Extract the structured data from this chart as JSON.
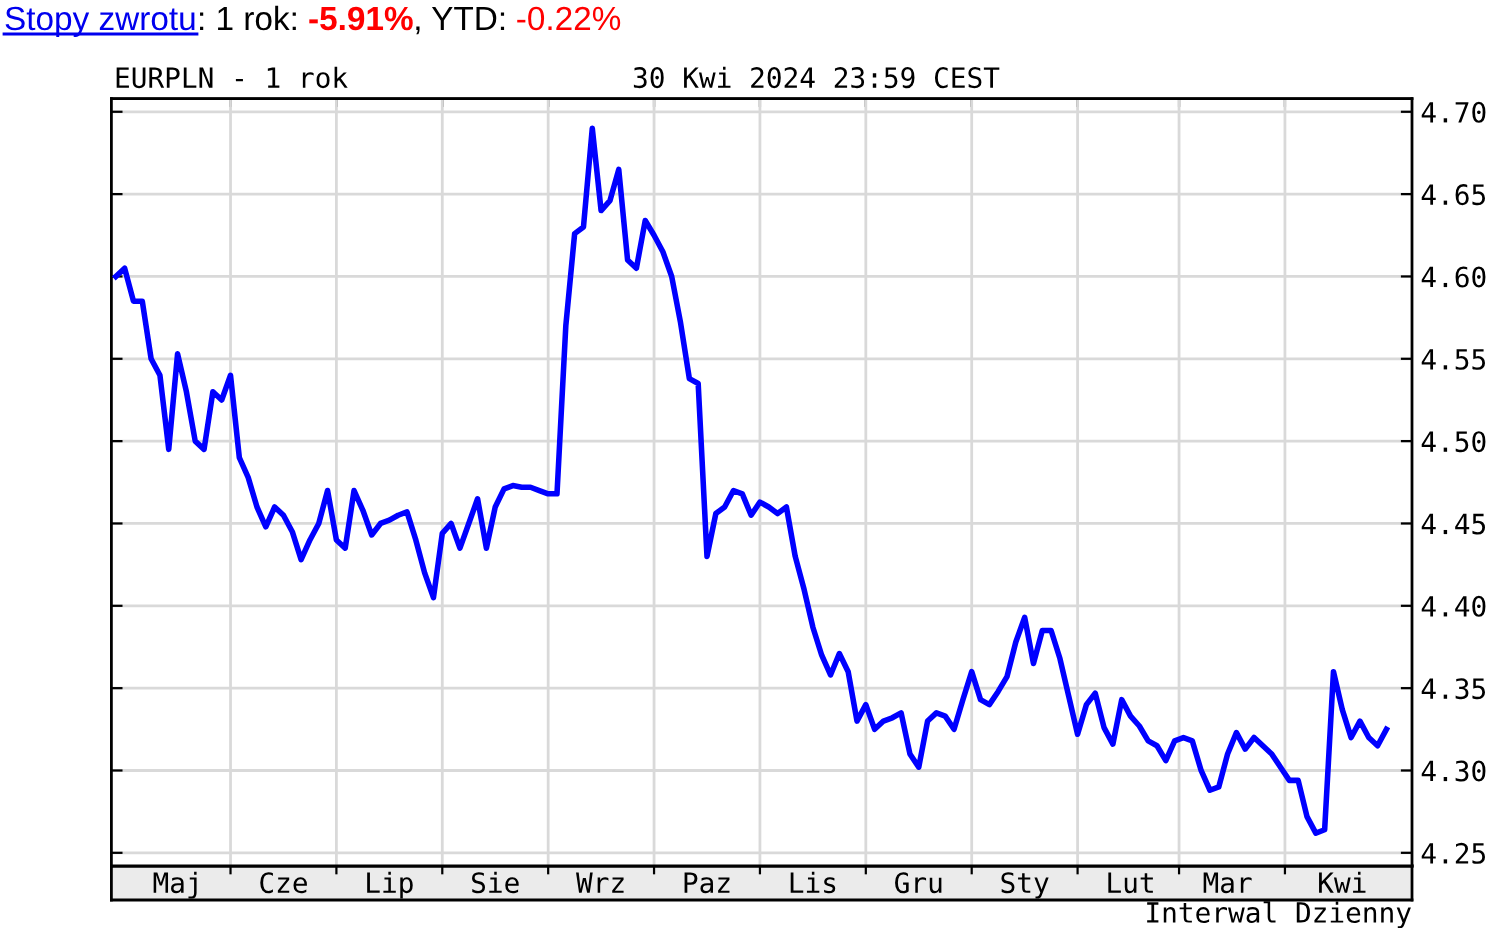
{
  "chart_data": {
    "type": "line",
    "title": "EURPLN - 1 rok",
    "subtitle": "30 Kwi 2024 23:59 CEST",
    "annotations": [
      "Stopy zwrotu",
      ": 1 rok: ",
      "-5.91%",
      ", YTD: ",
      "-0.22%"
    ],
    "xlabel": "Interwal Dzienny",
    "color": "#0000ff",
    "categories": [
      null,
      null,
      null,
      null,
      null,
      null,
      null,
      "Maj",
      null,
      null,
      null,
      null,
      null,
      null,
      null,
      null,
      null,
      null,
      null,
      "Cze",
      null,
      null,
      null,
      null,
      null,
      null,
      null,
      null,
      null,
      null,
      null,
      "Lip",
      null,
      null,
      null,
      null,
      null,
      null,
      null,
      null,
      null,
      null,
      null,
      "Sie",
      null,
      null,
      null,
      null,
      null,
      null,
      null,
      null,
      null,
      null,
      null,
      "Wrz",
      null,
      null,
      null,
      null,
      null,
      null,
      null,
      null,
      null,
      null,
      null,
      "Paz",
      null,
      null,
      null,
      null,
      null,
      null,
      null,
      null,
      null,
      null,
      null,
      "Lis",
      null,
      null,
      null,
      null,
      null,
      null,
      null,
      null,
      null,
      null,
      null,
      "Gru",
      null,
      null,
      null,
      null,
      null,
      null,
      null,
      null,
      null,
      null,
      null,
      "Sty",
      null,
      null,
      null,
      null,
      null,
      null,
      null,
      null,
      null,
      null,
      null,
      "Lut",
      null,
      null,
      null,
      null,
      null,
      null,
      null,
      null,
      null,
      null,
      "Mar",
      null,
      null,
      null,
      null,
      null,
      null,
      null,
      null,
      null,
      null,
      null,
      null,
      "Kwi",
      null,
      null,
      null,
      null,
      null
    ],
    "values": [
      4.6,
      4.605,
      4.585,
      4.585,
      4.55,
      4.54,
      4.495,
      4.553,
      4.53,
      4.5,
      4.495,
      4.53,
      4.525,
      4.54,
      4.49,
      4.478,
      4.46,
      4.448,
      4.46,
      4.455,
      4.445,
      4.428,
      4.44,
      4.45,
      4.47,
      4.44,
      4.435,
      4.47,
      4.458,
      4.443,
      4.45,
      4.452,
      4.455,
      4.457,
      4.44,
      4.42,
      4.405,
      4.444,
      4.45,
      4.435,
      4.45,
      4.465,
      4.435,
      4.46,
      4.471,
      4.473,
      4.472,
      4.472,
      4.47,
      4.468,
      4.468,
      4.57,
      4.626,
      4.63,
      4.69,
      4.64,
      4.646,
      4.665,
      4.61,
      4.605,
      4.634,
      4.625,
      4.615,
      4.6,
      4.572,
      4.538,
      4.535,
      4.43,
      4.456,
      4.46,
      4.47,
      4.468,
      4.455,
      4.463,
      4.46,
      4.456,
      4.46,
      4.43,
      4.41,
      4.387,
      4.37,
      4.358,
      4.371,
      4.36,
      4.33,
      4.34,
      4.325,
      4.33,
      4.332,
      4.335,
      4.31,
      4.302,
      4.33,
      4.335,
      4.333,
      4.325,
      4.343,
      4.36,
      4.343,
      4.34,
      4.348,
      4.357,
      4.378,
      4.393,
      4.365,
      4.385,
      4.385,
      4.368,
      4.345,
      4.322,
      4.34,
      4.347,
      4.326,
      4.316,
      4.343,
      4.333,
      4.327,
      4.318,
      4.315,
      4.306,
      4.318,
      4.32,
      4.318,
      4.3,
      4.288,
      4.29,
      4.31,
      4.323,
      4.313,
      4.32,
      4.315,
      4.31,
      4.302,
      4.294,
      4.294,
      4.272,
      4.262,
      4.264,
      4.36,
      4.337,
      4.32,
      4.33,
      4.32,
      4.315,
      4.325
    ],
    "ylim": [
      4.242,
      4.708
    ],
    "yticks": [
      4.25,
      {
        "value": 4.3,
        "label": "4.30"
      },
      4.35,
      {
        "value": 4.4,
        "label": "4.40"
      },
      4.45,
      {
        "value": 4.5,
        "label": "4.50"
      },
      4.55,
      {
        "value": 4.6,
        "label": "4.60"
      },
      4.65,
      {
        "value": 4.7,
        "label": "4.70"
      }
    ],
    "grid": true
  }
}
